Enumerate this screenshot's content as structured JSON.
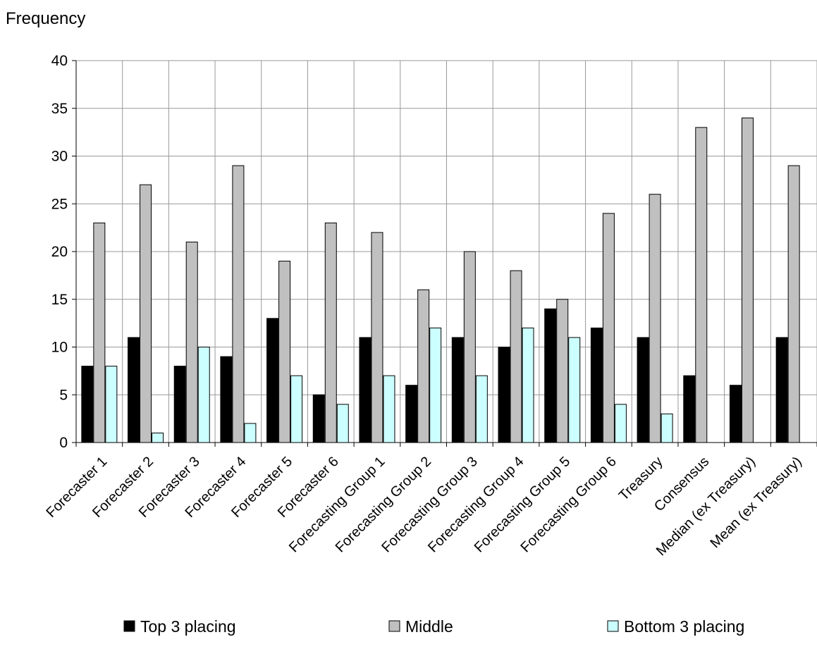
{
  "chart_data": {
    "type": "bar",
    "ylabel": "Frequency",
    "xlabel": "",
    "ylim": [
      0,
      40
    ],
    "yticks": [
      0,
      5,
      10,
      15,
      20,
      25,
      30,
      35,
      40
    ],
    "grid": true,
    "legend_position": "bottom",
    "categories": [
      "Forecaster 1",
      "Forecaster 2",
      "Forecaster 3",
      "Forecaster 4",
      "Forecaster 5",
      "Forecaster 6",
      "Forecasting Group 1",
      "Forecasting Group 2",
      "Forecasting Group 3",
      "Forecasting Group 4",
      "Forecasting Group 5",
      "Forecasting Group 6",
      "Treasury",
      "Consensus",
      "Median (ex Treasury)",
      "Mean (ex Treasury)"
    ],
    "series": [
      {
        "name": "Top 3 placing",
        "color": "#000000",
        "values": [
          8,
          11,
          8,
          9,
          13,
          5,
          11,
          6,
          11,
          10,
          14,
          12,
          11,
          7,
          6,
          11
        ]
      },
      {
        "name": "Middle",
        "color": "#c0c0c0",
        "values": [
          23,
          27,
          21,
          29,
          19,
          23,
          22,
          16,
          20,
          18,
          15,
          24,
          26,
          33,
          34,
          29
        ]
      },
      {
        "name": "Bottom 3 placing",
        "color": "#ccffff",
        "values": [
          8,
          1,
          10,
          2,
          7,
          4,
          7,
          12,
          7,
          12,
          11,
          4,
          3,
          0,
          0,
          0
        ]
      }
    ]
  }
}
